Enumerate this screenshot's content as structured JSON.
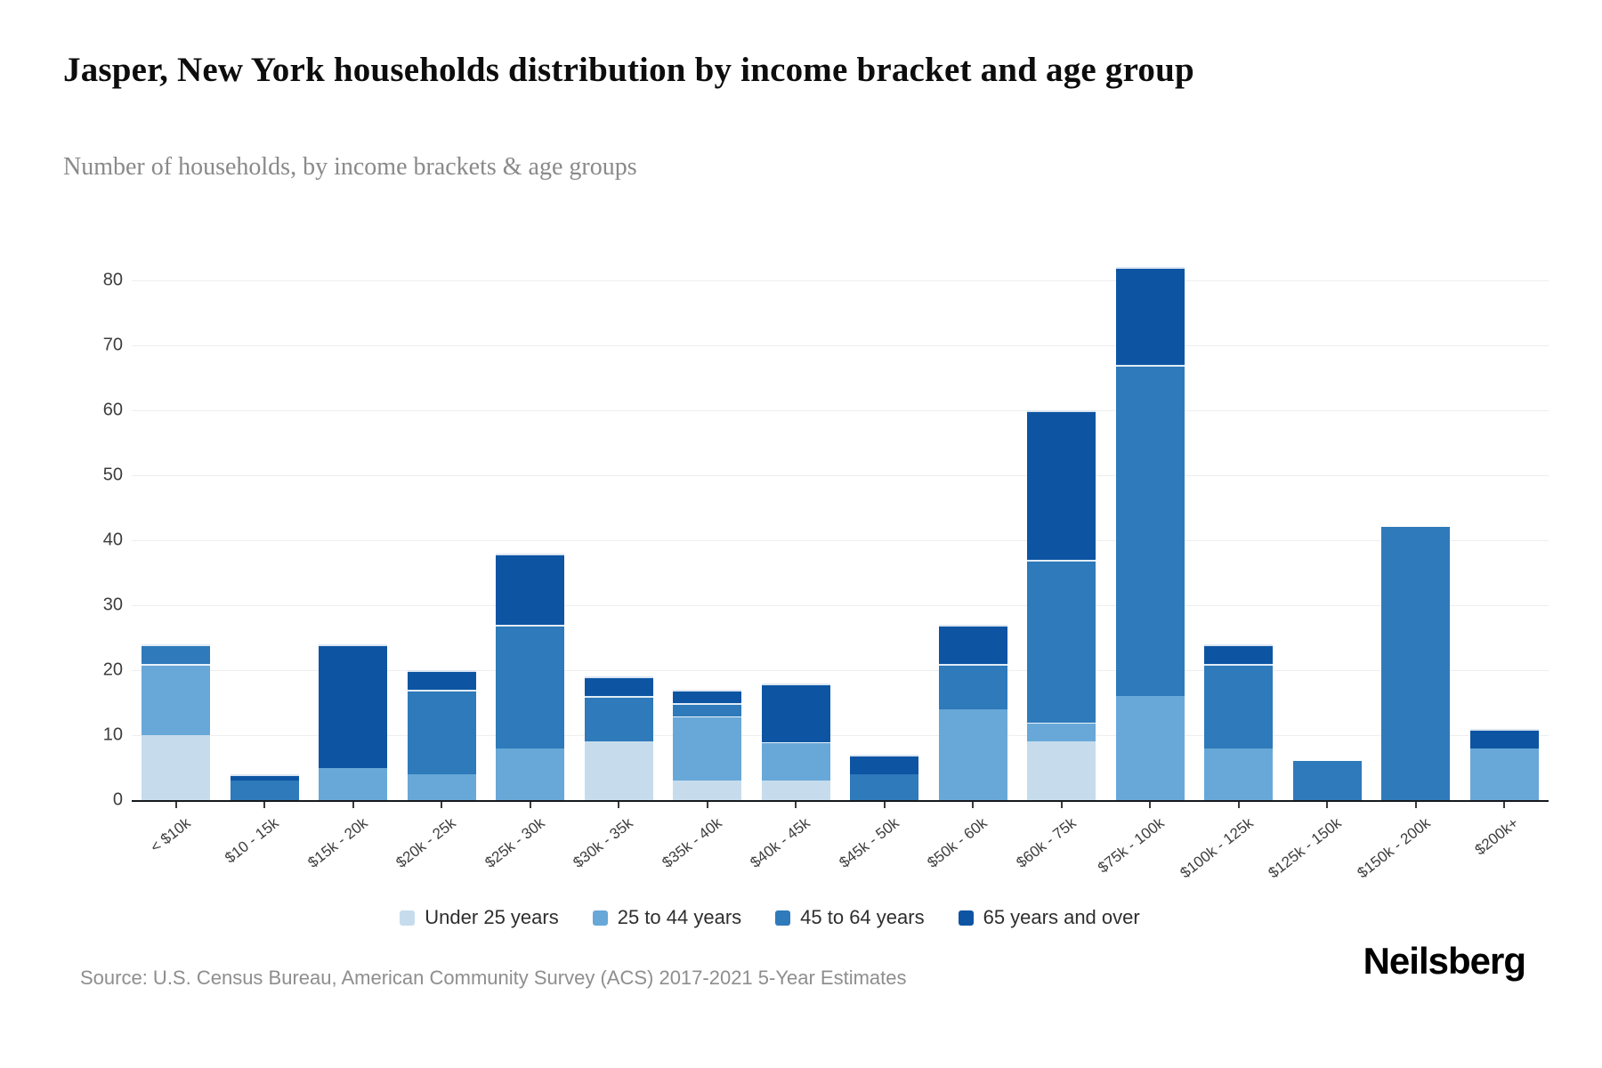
{
  "header": {
    "title": "Jasper, New York households distribution by income bracket and age group",
    "subtitle": "Number of households, by income brackets & age groups"
  },
  "chart_data": {
    "type": "bar",
    "stacked": true,
    "title": "Jasper, New York households distribution by income bracket and age group",
    "xlabel": "",
    "ylabel": "Number of households",
    "ylim": [
      0,
      80
    ],
    "ytick_step": 10,
    "yticks": [
      0,
      10,
      20,
      30,
      40,
      50,
      60,
      70,
      80
    ],
    "grid": true,
    "legend_position": "bottom",
    "categories": [
      "< $10k",
      "$10 - 15k",
      "$15k - 20k",
      "$20k - 25k",
      "$25k - 30k",
      "$30k - 35k",
      "$35k - 40k",
      "$40k - 45k",
      "$45k - 50k",
      "$50k - 60k",
      "$60k - 75k",
      "$75k - 100k",
      "$100k - 125k",
      "$125k - 150k",
      "$150k - 200k",
      "$200k+"
    ],
    "series": [
      {
        "name": "Under 25 years",
        "color": "#c6dcec",
        "values": [
          10,
          0,
          0,
          0,
          0,
          9,
          3,
          3,
          0,
          0,
          9,
          0,
          0,
          0,
          0,
          0
        ]
      },
      {
        "name": "25 to 44 years",
        "color": "#68a8d8",
        "values": [
          11,
          0,
          5,
          4,
          8,
          0,
          10,
          6,
          0,
          14,
          3,
          16,
          8,
          0,
          0,
          8
        ]
      },
      {
        "name": "45 to 64 years",
        "color": "#2e7aba",
        "values": [
          3,
          3,
          0,
          13,
          19,
          7,
          2,
          0,
          4,
          7,
          25,
          51,
          13,
          6,
          42,
          0
        ]
      },
      {
        "name": "65 years and over",
        "color": "#0d55a3",
        "values": [
          0,
          1,
          19,
          3,
          11,
          3,
          2,
          9,
          3,
          6,
          23,
          15,
          3,
          0,
          0,
          3
        ]
      }
    ],
    "totals": [
      24,
      4,
      24,
      20,
      38,
      19,
      17,
      18,
      7,
      27,
      60,
      82,
      24,
      6,
      42,
      11
    ]
  },
  "footer": {
    "source": "Source: U.S. Census Bureau, American Community Survey (ACS) 2017-2021 5-Year Estimates",
    "logo": "Neilsberg"
  }
}
